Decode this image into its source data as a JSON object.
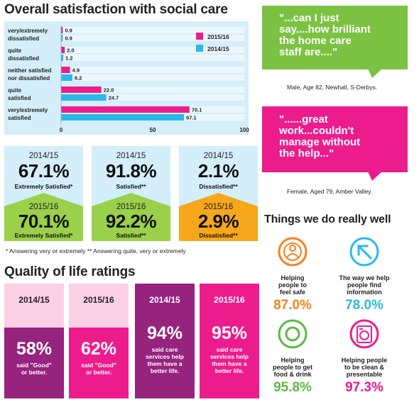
{
  "chart_data": {
    "type": "bar",
    "title": "Overall satisfaction with social care",
    "categories": [
      [
        "very/extremely",
        "dissatisfied"
      ],
      [
        "quite",
        "dissatisfied"
      ],
      [
        "neither satisfied",
        "nor dissatisfied"
      ],
      [
        "quite",
        "satisfied"
      ],
      [
        "very/extremely",
        "satisfied"
      ]
    ],
    "series": [
      {
        "name": "2015/16",
        "color": "#ec1c8c",
        "values": [
          0.9,
          2.0,
          4.9,
          22.0,
          70.1
        ]
      },
      {
        "name": "2014/15",
        "color": "#2ab9e9",
        "values": [
          0.9,
          1.2,
          6.2,
          24.7,
          67.1
        ]
      }
    ],
    "xlim": [
      0,
      100
    ],
    "xticks": [
      "0",
      "50",
      "100"
    ],
    "legend": "top-right",
    "background": "#d4eefa"
  },
  "stats": [
    {
      "y1": "2014/15",
      "p1": "67.1%",
      "l1": "Extremely Satisfied*",
      "y2": "2015/16",
      "p2": "70.1%",
      "l2": "Extremely Satisfied*",
      "color": "#9bd04a"
    },
    {
      "y1": "2014/15",
      "p1": "91.8%",
      "l1": "Satisfied**",
      "y2": "2015/16",
      "p2": "92.2%",
      "l2": "Satisfied**",
      "color": "#9bd04a"
    },
    {
      "y1": "2014/15",
      "p1": "2.1%",
      "l1": "Dissatisfied**",
      "y2": "2015/16",
      "p2": "2.9%",
      "l2": "Dissatisfied**",
      "color": "#f6a71c"
    }
  ],
  "footnote": "* Answering very or extremely     ** Answering quite, very or extremely",
  "quotes": [
    {
      "lines": [
        "\"...can I just",
        "say....how brilliant",
        "the home care",
        "staff are....\""
      ],
      "attribution": "Male, Age 82, Newhall, S-Derbys.",
      "color": "#7cc242"
    },
    {
      "lines": [
        "\"......great",
        "work...couldn't",
        "manage without",
        "the help...\""
      ],
      "attribution": "Female, Aged 79, Amber Valley.",
      "color": "#ec1c8c"
    }
  ],
  "quality_title": "Quality of life ratings",
  "quality": [
    {
      "year": "2014/15",
      "pct": "58%",
      "lines": [
        "said \"Good\"",
        "or better."
      ],
      "dark": "#96237e",
      "light": "#fbd0e5",
      "yearColor": "#222"
    },
    {
      "year": "2015/16",
      "pct": "62%",
      "lines": [
        "said \"Good\"",
        "or better."
      ],
      "dark": "#ec1c8c",
      "light": "#fbd0e5",
      "yearColor": "#222"
    },
    {
      "year": "2014/15",
      "pct": "94%",
      "lines": [
        "said care",
        "services help",
        "them have a",
        "better life."
      ],
      "dark": "#96237e",
      "light": "#96237e",
      "yearColor": "#fff"
    },
    {
      "year": "2015/16",
      "pct": "95%",
      "lines": [
        "said care",
        "services help",
        "them have a",
        "better life."
      ],
      "dark": "#ec1c8c",
      "light": "#ec1c8c",
      "yearColor": "#fff"
    }
  ],
  "things_title": "Things we do really well",
  "things": [
    {
      "lines": [
        "Helping",
        "people to",
        "feel safe"
      ],
      "pct": "87.0%",
      "color": "#f58220",
      "icon": "person-icon"
    },
    {
      "lines": [
        "The way we help",
        "people find",
        "information"
      ],
      "pct": "78.0%",
      "color": "#2ab9e9",
      "icon": "arrow-icon"
    },
    {
      "lines": [
        "Helping",
        "people to get",
        "food & drink"
      ],
      "pct": "95.8%",
      "color": "#5bb946",
      "icon": "plate-icon"
    },
    {
      "lines": [
        "Helping people",
        "to be clean &",
        "presentable"
      ],
      "pct": "97.3%",
      "color": "#ec1c8c",
      "icon": "washing-machine-icon"
    }
  ]
}
